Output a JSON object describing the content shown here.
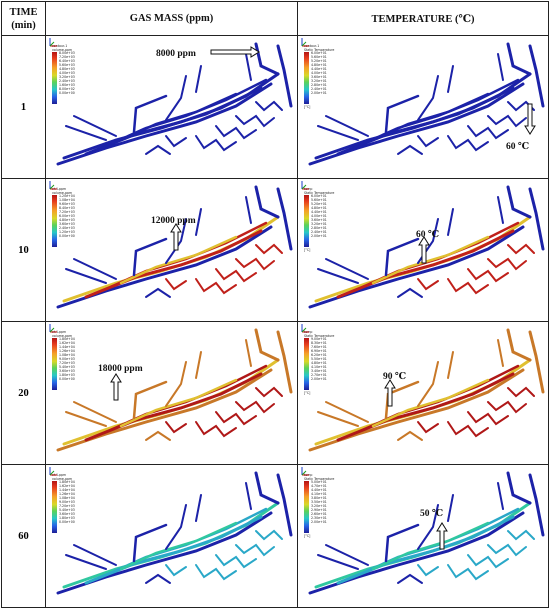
{
  "headers": {
    "time": "TIME (min)",
    "gas_mass": "GAS MASS (ppm)",
    "temperature": "TEMPERATURE (℃)"
  },
  "rows": [
    {
      "time": "1",
      "gas": {
        "label": "8000 ppm",
        "legend_title": "contour-1",
        "legend_sub": "volume-ppm",
        "ticks": [
          "8.00e+03",
          "7.20e+03",
          "6.40e+03",
          "5.60e+03",
          "4.80e+03",
          "4.00e+03",
          "3.20e+03",
          "2.40e+03",
          "1.60e+03",
          "8.00e+02",
          "0.00e+00"
        ],
        "unit": "",
        "colors": {
          "main": "#1c22a8",
          "hot": "#1c22a8",
          "mid": "#1c22a8"
        }
      },
      "temp": {
        "label": "60 ℃",
        "legend_title": "contour-1",
        "legend_sub": "Static Temperature",
        "ticks": [
          "6.00e+01",
          "5.60e+01",
          "5.20e+01",
          "4.80e+01",
          "4.40e+01",
          "4.00e+01",
          "3.60e+01",
          "3.20e+01",
          "2.80e+01",
          "2.40e+01",
          "2.00e+01"
        ],
        "unit": "[°C]",
        "colors": {
          "main": "#1c22a8",
          "hot": "#1c22a8",
          "mid": "#1c22a8"
        }
      }
    },
    {
      "time": "10",
      "gas": {
        "label": "12000 ppm",
        "legend_title": "ch4-ppm",
        "legend_sub": "volume-ppm",
        "ticks": [
          "1.20e+04",
          "1.08e+04",
          "9.60e+03",
          "8.40e+03",
          "7.20e+03",
          "6.00e+03",
          "4.80e+03",
          "3.60e+03",
          "2.40e+03",
          "1.20e+03",
          "0.00e+00"
        ],
        "unit": "",
        "colors": {
          "main": "#1c22a8",
          "hot": "#c0201a",
          "mid": "#e0c030"
        }
      },
      "temp": {
        "label": "60 ℃",
        "legend_title": "temp",
        "legend_sub": "Static Temperature",
        "ticks": [
          "6.00e+01",
          "5.60e+01",
          "5.20e+01",
          "4.80e+01",
          "4.40e+01",
          "4.00e+01",
          "3.60e+01",
          "3.20e+01",
          "2.80e+01",
          "2.40e+01",
          "2.00e+01"
        ],
        "unit": "[°C]",
        "colors": {
          "main": "#1c22a8",
          "hot": "#c0201a",
          "mid": "#e0c030"
        }
      }
    },
    {
      "time": "20",
      "gas": {
        "label": "18000 ppm",
        "legend_title": "ch4-ppm",
        "legend_sub": "volume-ppm",
        "ticks": [
          "1.80e+04",
          "1.62e+04",
          "1.44e+04",
          "1.26e+04",
          "1.08e+04",
          "9.00e+03",
          "7.20e+03",
          "5.40e+03",
          "3.60e+03",
          "1.80e+03",
          "0.00e+00"
        ],
        "unit": "",
        "colors": {
          "main": "#c87828",
          "hot": "#b01818",
          "mid": "#e0c030"
        }
      },
      "temp": {
        "label": "90 ℃",
        "legend_title": "temp",
        "legend_sub": "Static Temperature",
        "ticks": [
          "9.00e+01",
          "8.30e+01",
          "7.60e+01",
          "6.90e+01",
          "6.20e+01",
          "5.50e+01",
          "4.80e+01",
          "4.10e+01",
          "3.40e+01",
          "2.70e+01",
          "2.00e+01"
        ],
        "unit": "[°C]",
        "colors": {
          "main": "#c87828",
          "hot": "#b01818",
          "mid": "#e0c030"
        }
      }
    },
    {
      "time": "60",
      "gas": {
        "label": "",
        "legend_title": "ch4-ppm",
        "legend_sub": "volume-ppm",
        "ticks": [
          "1.80e+04",
          "1.62e+04",
          "1.44e+04",
          "1.26e+04",
          "1.08e+04",
          "9.00e+03",
          "7.20e+03",
          "5.40e+03",
          "3.60e+03",
          "1.80e+03",
          "0.00e+00"
        ],
        "unit": "",
        "colors": {
          "main": "#1c22a8",
          "hot": "#2aa8c8",
          "mid": "#30c8a0"
        }
      },
      "temp": {
        "label": "50 ℃",
        "legend_title": "temp",
        "legend_sub": "Static Temperature",
        "ticks": [
          "5.00e+01",
          "4.70e+01",
          "4.40e+01",
          "4.10e+01",
          "3.80e+01",
          "3.50e+01",
          "3.20e+01",
          "2.90e+01",
          "2.60e+01",
          "2.30e+01",
          "2.00e+01"
        ],
        "unit": "[°C]",
        "colors": {
          "main": "#1c22a8",
          "hot": "#2aa8c8",
          "mid": "#30c8a0"
        }
      }
    }
  ]
}
